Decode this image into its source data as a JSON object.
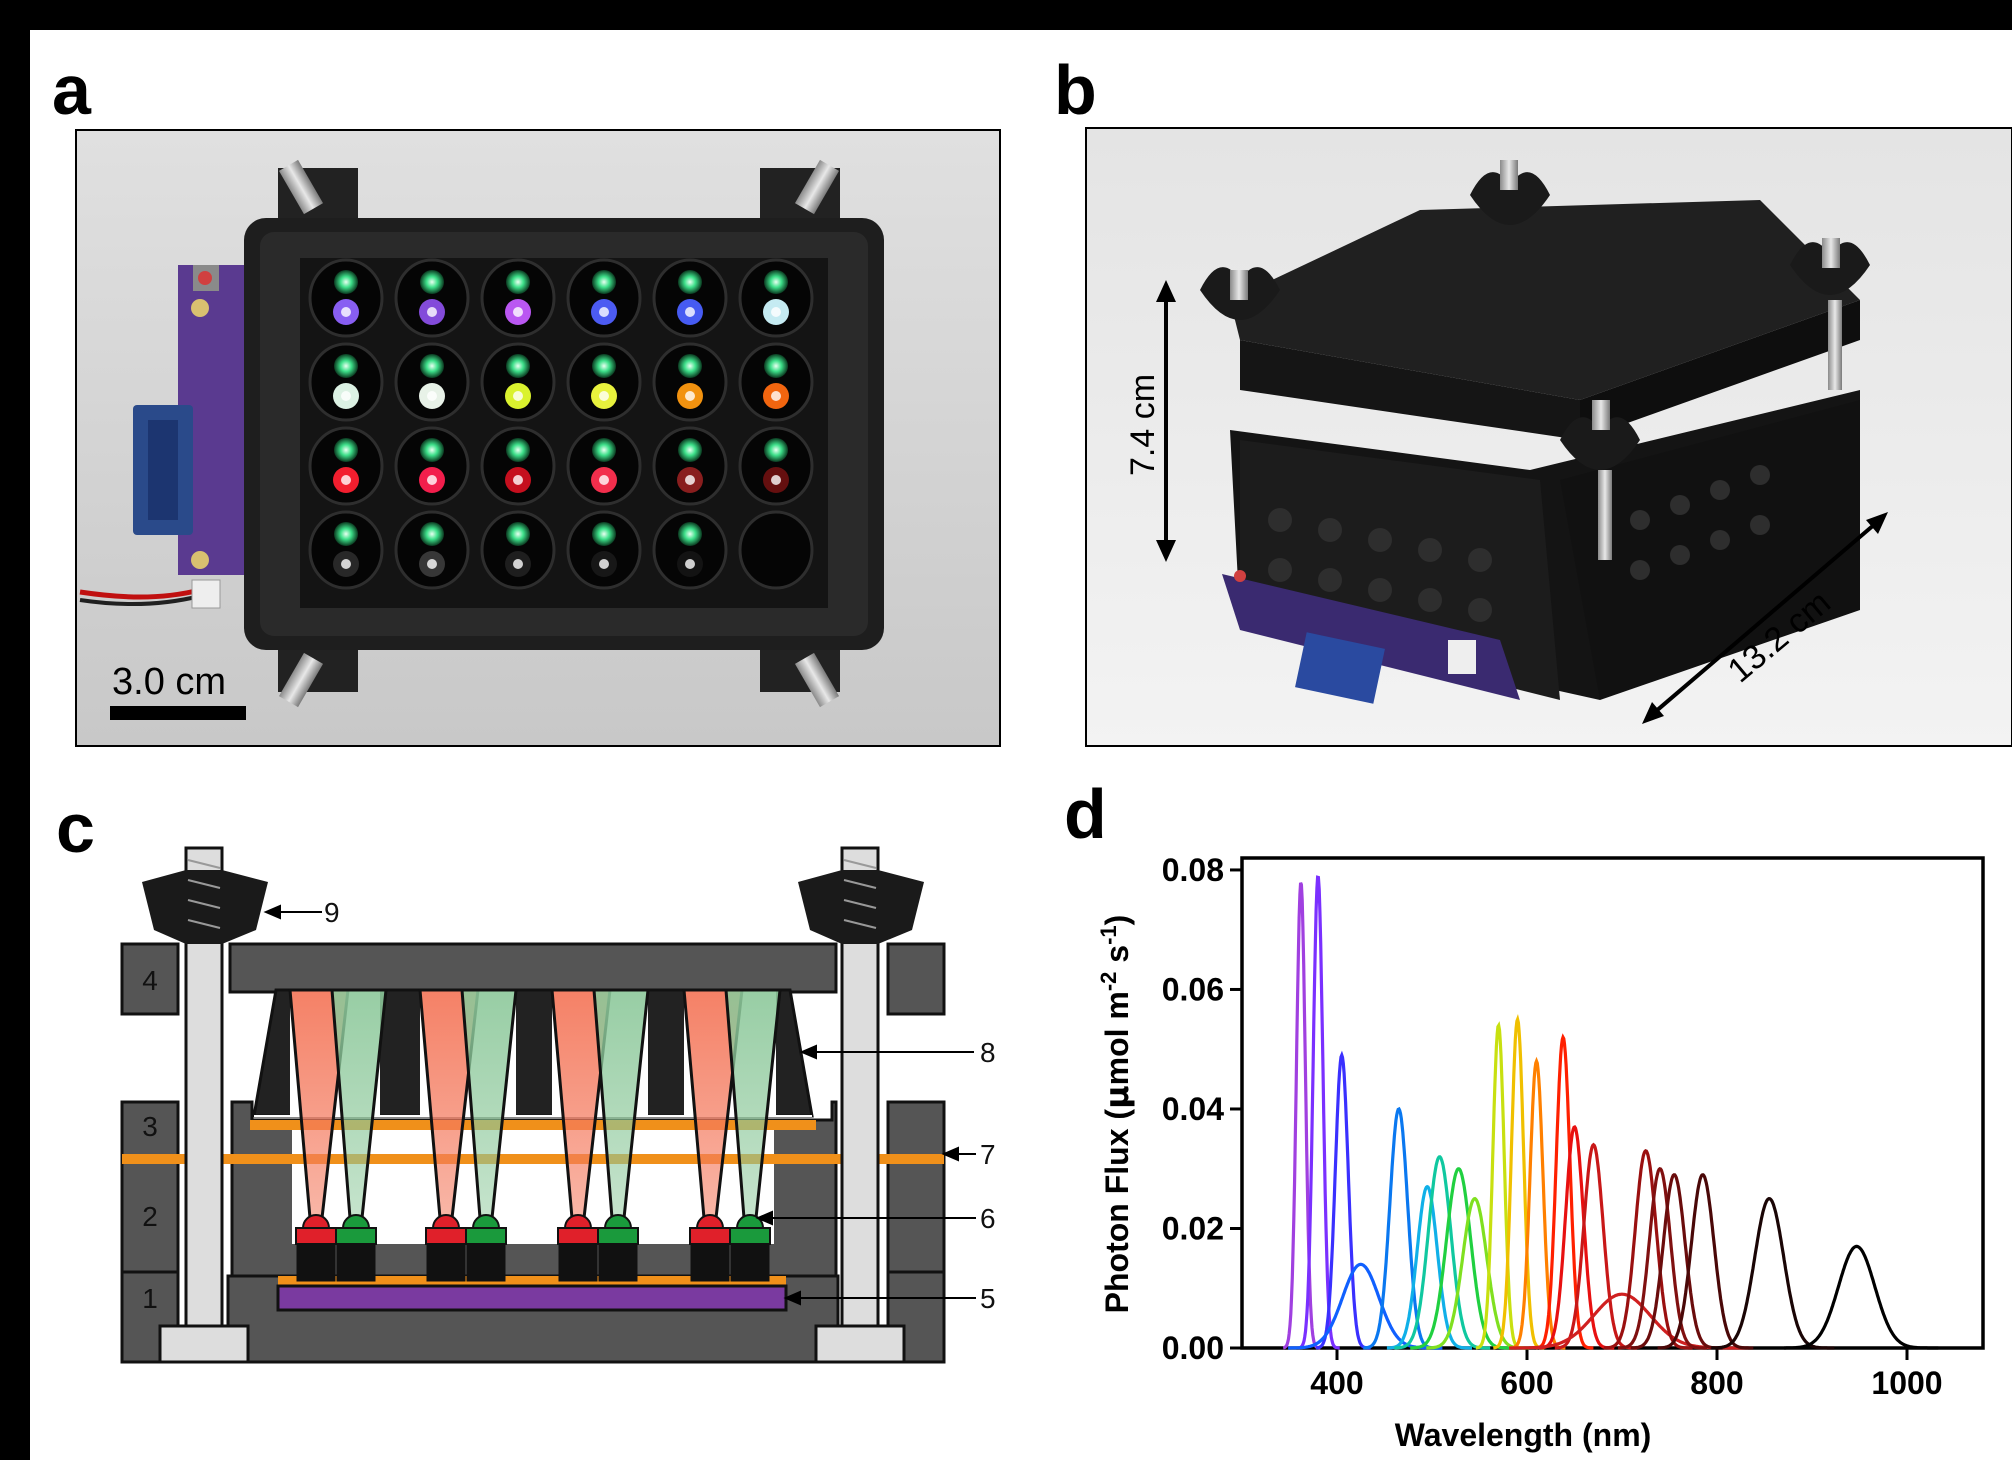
{
  "panels": {
    "a": {
      "label": "a",
      "scale_bar": "3.0 cm",
      "led_rows": [
        [
          "#8f63ff",
          "#8a4fe6",
          "#c45cff",
          "#5060ff",
          "#4a60ff",
          "#d0f8ff"
        ],
        [
          "#e8fff0",
          "#f4fff4",
          "#e6ff30",
          "#f4ff40",
          "#ff9a10",
          "#ff6a10"
        ],
        [
          "#ff2030",
          "#ff2050",
          "#d01020",
          "#ff3050",
          "#902020",
          "#6a1010"
        ],
        [
          "#2a2a2a",
          "#3a3a3a",
          "#202020",
          "#181818",
          "#141414",
          ""
        ]
      ]
    },
    "b": {
      "label": "b",
      "height_dim": "7.4 cm",
      "width_dim": "13.2 cm"
    },
    "c": {
      "label": "c",
      "layers": [
        "1",
        "2",
        "3",
        "4"
      ],
      "callouts": [
        "5",
        "6",
        "7",
        "8",
        "9"
      ],
      "colors": {
        "housing": "#555555",
        "led_red": "#e0202a",
        "led_green": "#1a9a3c",
        "gasket": "#f0901a",
        "pcb": "#7a3aa0",
        "beam_red": "#f47a5e",
        "beam_green": "#8cc89a"
      }
    },
    "d": {
      "label": "d"
    }
  },
  "chart_data": {
    "type": "line",
    "xlabel": "Wavelength (nm)",
    "ylabel_prefix": "Photon Flux (",
    "ylabel_mu": "μ",
    "ylabel_unit": "mol m",
    "ylabel_exp1": "-2",
    "ylabel_s": " s",
    "ylabel_exp2": "-1",
    "ylabel_suffix": ")",
    "xlim": [
      300,
      1080
    ],
    "ylim": [
      0,
      0.082
    ],
    "x_ticks": [
      400,
      600,
      800,
      1000
    ],
    "x_tick_labels": [
      "400",
      "600",
      "800",
      "1000"
    ],
    "y_ticks": [
      0.0,
      0.02,
      0.04,
      0.06,
      0.08
    ],
    "y_tick_labels": [
      "0.00",
      "0.02",
      "0.04",
      "0.06",
      "0.08"
    ],
    "grid": false,
    "series": [
      {
        "peak_nm": 362,
        "peak_flux": 0.078,
        "fwhm_nm": 11,
        "color": "#a040e0"
      },
      {
        "peak_nm": 380,
        "peak_flux": 0.079,
        "fwhm_nm": 12,
        "color": "#7a30ff"
      },
      {
        "peak_nm": 405,
        "peak_flux": 0.049,
        "fwhm_nm": 16,
        "color": "#3a30ff"
      },
      {
        "peak_nm": 425,
        "peak_flux": 0.014,
        "fwhm_nm": 45,
        "color": "#1060ff"
      },
      {
        "peak_nm": 465,
        "peak_flux": 0.04,
        "fwhm_nm": 22,
        "color": "#0a78f0"
      },
      {
        "peak_nm": 495,
        "peak_flux": 0.027,
        "fwhm_nm": 25,
        "color": "#10b0e8"
      },
      {
        "peak_nm": 508,
        "peak_flux": 0.032,
        "fwhm_nm": 28,
        "color": "#10c8a0"
      },
      {
        "peak_nm": 528,
        "peak_flux": 0.03,
        "fwhm_nm": 30,
        "color": "#20d040"
      },
      {
        "peak_nm": 545,
        "peak_flux": 0.025,
        "fwhm_nm": 30,
        "color": "#80e020"
      },
      {
        "peak_nm": 570,
        "peak_flux": 0.054,
        "fwhm_nm": 14,
        "color": "#c8e010"
      },
      {
        "peak_nm": 590,
        "peak_flux": 0.055,
        "fwhm_nm": 15,
        "color": "#f0c000"
      },
      {
        "peak_nm": 610,
        "peak_flux": 0.048,
        "fwhm_nm": 16,
        "color": "#ff8000"
      },
      {
        "peak_nm": 638,
        "peak_flux": 0.052,
        "fwhm_nm": 17,
        "color": "#ff2000"
      },
      {
        "peak_nm": 650,
        "peak_flux": 0.037,
        "fwhm_nm": 22,
        "color": "#e81010"
      },
      {
        "peak_nm": 670,
        "peak_flux": 0.034,
        "fwhm_nm": 24,
        "color": "#c81818"
      },
      {
        "peak_nm": 700,
        "peak_flux": 0.009,
        "fwhm_nm": 70,
        "color": "#d02020"
      },
      {
        "peak_nm": 725,
        "peak_flux": 0.033,
        "fwhm_nm": 26,
        "color": "#9a1010"
      },
      {
        "peak_nm": 740,
        "peak_flux": 0.03,
        "fwhm_nm": 26,
        "color": "#801010"
      },
      {
        "peak_nm": 755,
        "peak_flux": 0.029,
        "fwhm_nm": 27,
        "color": "#6a0c0c"
      },
      {
        "peak_nm": 785,
        "peak_flux": 0.029,
        "fwhm_nm": 28,
        "color": "#4a0808"
      },
      {
        "peak_nm": 855,
        "peak_flux": 0.025,
        "fwhm_nm": 36,
        "color": "#1a0505"
      },
      {
        "peak_nm": 947,
        "peak_flux": 0.017,
        "fwhm_nm": 45,
        "color": "#000000"
      }
    ]
  }
}
